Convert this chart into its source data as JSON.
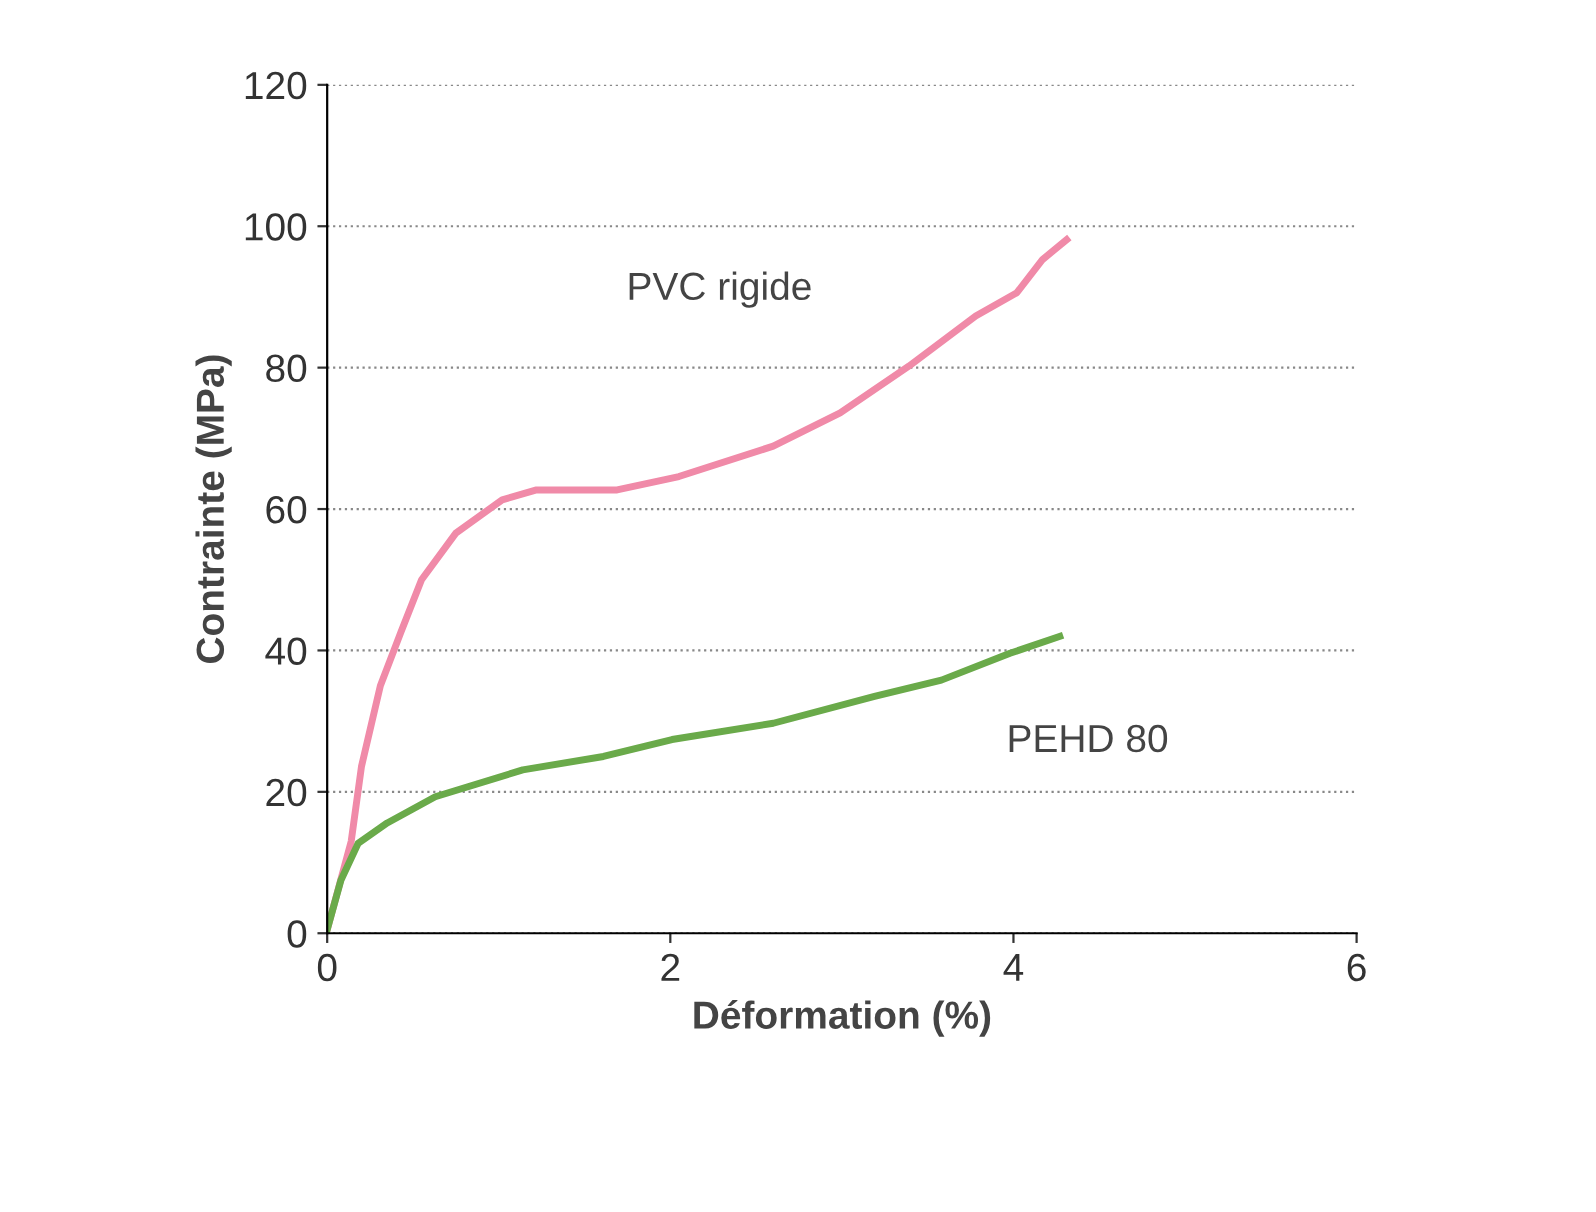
{
  "chart_data": {
    "type": "line",
    "xlabel": "Déformation (%)",
    "ylabel": "Contrainte (MPa)",
    "xlim": [
      0,
      6
    ],
    "xticks": [
      0,
      2,
      4,
      6
    ],
    "ylim": [
      0,
      120
    ],
    "yticks": [
      0,
      20,
      40,
      60,
      80,
      100,
      120
    ],
    "grid": "y",
    "legend": false,
    "marker": "none",
    "line_style": "solid",
    "series": [
      {
        "name": "PVC rigide",
        "color": "#f08aa8",
        "x": [
          0,
          0.14,
          0.2,
          0.31,
          0.43,
          0.55,
          0.75,
          1.02,
          1.22,
          1.69,
          2.05,
          2.6,
          2.99,
          3.39,
          3.78,
          4.02,
          4.17,
          4.31
        ],
        "values": [
          0.5,
          13,
          23.6,
          35,
          42.6,
          50,
          56.6,
          61.3,
          62.7,
          62.7,
          64.6,
          68.9,
          73.6,
          80.2,
          87.3,
          90.6,
          95.3,
          98.1
        ]
      },
      {
        "name": "PEHD 80",
        "color": "#6aaa4a",
        "x": [
          0,
          0.08,
          0.18,
          0.35,
          0.63,
          1.14,
          1.61,
          2.01,
          2.6,
          3.19,
          3.58,
          3.98,
          4.27
        ],
        "values": [
          0.5,
          7.5,
          12.7,
          15.6,
          19.3,
          23.1,
          25,
          27.4,
          29.7,
          33.5,
          35.8,
          39.6,
          42
        ]
      }
    ]
  }
}
